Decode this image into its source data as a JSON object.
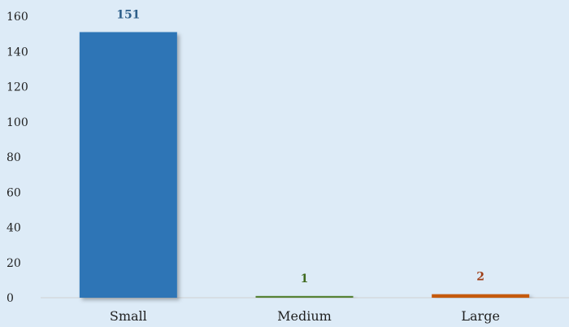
{
  "chart_data": {
    "type": "bar",
    "title": "",
    "xlabel": "",
    "ylabel": "",
    "categories": [
      "Small",
      "Medium",
      "Large"
    ],
    "values": [
      151,
      1,
      2
    ],
    "value_labels": [
      "151",
      "1",
      "2"
    ],
    "ylim": [
      0,
      160
    ],
    "yticks": [
      0,
      20,
      40,
      60,
      80,
      100,
      120,
      140,
      160
    ],
    "ytick_labels": [
      "0",
      "20",
      "40",
      "60",
      "80",
      "100",
      "120",
      "140",
      "160"
    ],
    "grid": false,
    "legend": "none",
    "colors": {
      "bars": [
        "#2e75b6",
        "#548235",
        "#c55a11"
      ],
      "labels": [
        "#2e5f8a",
        "#3f6a1e",
        "#9e3d16"
      ],
      "background": "#ddebf7",
      "axis": "#d0d0d0"
    }
  }
}
